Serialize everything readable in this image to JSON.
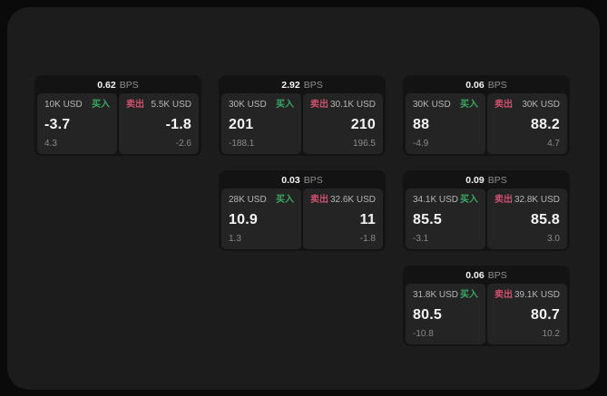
{
  "colors": {
    "page_bg": "#0a0a0a",
    "window_bg": "#1c1c1d",
    "card_bg": "#131313",
    "panel_bg": "#242424",
    "buy_green": "#3aa863",
    "sell_red": "#cd506c",
    "value_white": "#f4f4f4",
    "size_gray": "#b6b6b6",
    "delta_gray": "#8a8a8a",
    "bps_gray": "#8f8f8f"
  },
  "labels": {
    "bps": "BPS",
    "buy": "买入",
    "sell": "卖出"
  },
  "cards": [
    {
      "bps": "0.62",
      "col": 0,
      "row": 0,
      "buy": {
        "size": "10K USD",
        "price": "-3.7",
        "delta": "4.3"
      },
      "sell": {
        "size": "5.5K USD",
        "price": "-1.8",
        "delta": "-2.6"
      }
    },
    {
      "bps": "2.92",
      "col": 1,
      "row": 0,
      "buy": {
        "size": "30K USD",
        "price": "201",
        "delta": "-188.1"
      },
      "sell": {
        "size": "30.1K USD",
        "price": "210",
        "delta": "196.5"
      }
    },
    {
      "bps": "0.06",
      "col": 2,
      "row": 0,
      "buy": {
        "size": "30K USD",
        "price": "88",
        "delta": "-4.9"
      },
      "sell": {
        "size": "30K USD",
        "price": "88.2",
        "delta": "4.7"
      }
    },
    {
      "bps": "0.03",
      "col": 1,
      "row": 1,
      "buy": {
        "size": "28K USD",
        "price": "10.9",
        "delta": "1.3"
      },
      "sell": {
        "size": "32.6K USD",
        "price": "11",
        "delta": "-1.8"
      }
    },
    {
      "bps": "0.09",
      "col": 2,
      "row": 1,
      "buy": {
        "size": "34.1K USD",
        "price": "85.5",
        "delta": "-3.1"
      },
      "sell": {
        "size": "32.8K USD",
        "price": "85.8",
        "delta": "3.0"
      }
    },
    {
      "bps": "0.06",
      "col": 2,
      "row": 2,
      "buy": {
        "size": "31.8K USD",
        "price": "80.5",
        "delta": "-10.8"
      },
      "sell": {
        "size": "39.1K USD",
        "price": "80.7",
        "delta": "10.2"
      }
    }
  ]
}
